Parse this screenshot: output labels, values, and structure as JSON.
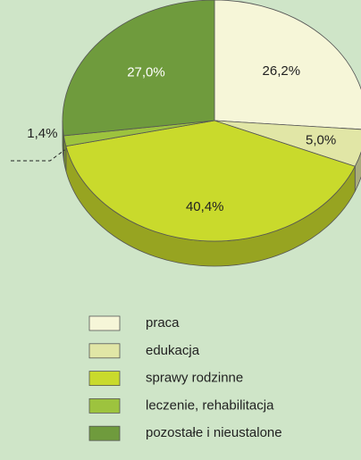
{
  "chart_data": {
    "type": "pie",
    "categories": [
      "praca",
      "edukacja",
      "sprawy rodzinne",
      "leczenie, rehabilitacja",
      "pozostałe i nieustalone"
    ],
    "values": [
      26.2,
      5.0,
      40.4,
      1.4,
      27.0
    ],
    "value_labels": [
      "26,2%",
      "5,0%",
      "40,4%",
      "1,4%",
      "27,0%"
    ],
    "colors": [
      "#f6f6d8",
      "#e1e6a6",
      "#c9da2c",
      "#9dc33e",
      "#6f9b3d"
    ],
    "legend": "bottom"
  }
}
